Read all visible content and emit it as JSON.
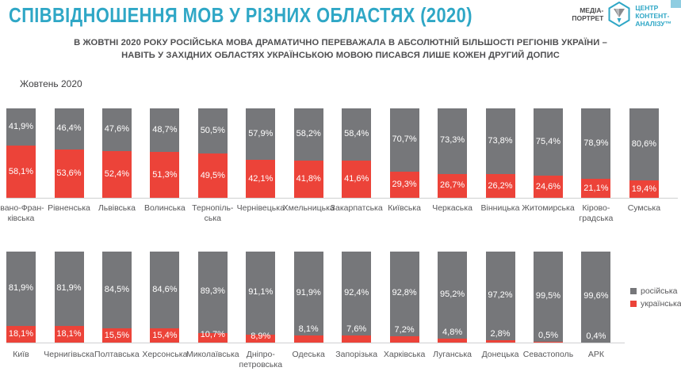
{
  "header": {
    "title": "СПІВВІДНОШЕННЯ МОВ У РІЗНИХ ОБЛАСТЯХ (2020)",
    "brand": {
      "media_portrait": "МЕДІА-\nПОРТРЕТ",
      "center": "ЦЕНТР\nКОНТЕНТ-\nАНАЛІЗУ™"
    }
  },
  "subtitle": {
    "line1": "В ЖОВТНІ 2020 РОКУ РОСІЙСЬКА МОВА ДРАМАТИЧНО ПЕРЕВАЖАЛА В АБСОЛЮТНІЙ БІЛЬШОСТІ РЕГІОНІВ УКРАЇНИ –",
    "line2": "НАВІТЬ У ЗАХІДНИХ ОБЛАСТЯХ УКРАЇНСЬКОЮ МОВОЮ ПИСАВСЯ ЛИШЕ КОЖЕН ДРУГИЙ ДОПИС"
  },
  "period_label": "Жовтень 2020",
  "colors": {
    "russian_gray": "#76777a",
    "ukrainian_red": "#ec4339",
    "accent_teal": "#2fa7c6",
    "label_dark": "#58585a"
  },
  "legend": {
    "position": "right-of-bottom-row",
    "items": [
      {
        "label": "російська",
        "color_key": "russian_gray"
      },
      {
        "label": "українська",
        "color_key": "ukrainian_red"
      }
    ]
  },
  "chart_data": {
    "type": "bar",
    "subtype": "100-percent-stacked-columns",
    "unit": "%",
    "title": "СПІВВІДНОШЕННЯ МОВ У РІЗНИХ ОБЛАСТЯХ (2020)",
    "period": "Жовтень 2020",
    "series_names": [
      "російська",
      "українська"
    ],
    "value_format": "comma-decimal-percent",
    "grid": false,
    "rows": [
      {
        "name": "top-row",
        "items": [
          {
            "region": "Івано-Фран-\nківська",
            "russian": 41.9,
            "ukrainian": 58.1
          },
          {
            "region": "Рівненська",
            "russian": 46.4,
            "ukrainian": 53.6
          },
          {
            "region": "Львівська",
            "russian": 47.6,
            "ukrainian": 52.4
          },
          {
            "region": "Волинська",
            "russian": 48.7,
            "ukrainian": 51.3
          },
          {
            "region": "Тернопіль-\nська",
            "russian": 50.5,
            "ukrainian": 49.5
          },
          {
            "region": "Чернівецька",
            "russian": 57.9,
            "ukrainian": 42.1
          },
          {
            "region": "Хмельницька",
            "russian": 58.2,
            "ukrainian": 41.8
          },
          {
            "region": "Закарпатська",
            "russian": 58.4,
            "ukrainian": 41.6
          },
          {
            "region": "Київська",
            "russian": 70.7,
            "ukrainian": 29.3
          },
          {
            "region": "Черкаська",
            "russian": 73.3,
            "ukrainian": 26.7
          },
          {
            "region": "Вінницька",
            "russian": 73.8,
            "ukrainian": 26.2
          },
          {
            "region": "Житомирська",
            "russian": 75.4,
            "ukrainian": 24.6
          },
          {
            "region": "Кірово-\nградська",
            "russian": 78.9,
            "ukrainian": 21.1
          },
          {
            "region": "Сумська",
            "russian": 80.6,
            "ukrainian": 19.4
          }
        ]
      },
      {
        "name": "bottom-row",
        "items": [
          {
            "region": "Київ",
            "russian": 81.9,
            "ukrainian": 18.1
          },
          {
            "region": "Чернигівьска",
            "russian": 81.9,
            "ukrainian": 18.1
          },
          {
            "region": "Полтавська",
            "russian": 84.5,
            "ukrainian": 15.5
          },
          {
            "region": "Херсонська",
            "russian": 84.6,
            "ukrainian": 15.4
          },
          {
            "region": "Миколаївська",
            "russian": 89.3,
            "ukrainian": 10.7
          },
          {
            "region": "Дніпро-\nпетровська",
            "russian": 91.1,
            "ukrainian": 8.9
          },
          {
            "region": "Одеська",
            "russian": 91.9,
            "ukrainian": 8.1
          },
          {
            "region": "Запорізька",
            "russian": 92.4,
            "ukrainian": 7.6
          },
          {
            "region": "Харківська",
            "russian": 92.8,
            "ukrainian": 7.2
          },
          {
            "region": "Луганська",
            "russian": 95.2,
            "ukrainian": 4.8
          },
          {
            "region": "Донецька",
            "russian": 97.2,
            "ukrainian": 2.8
          },
          {
            "region": "Севастополь",
            "russian": 99.5,
            "ukrainian": 0.5
          },
          {
            "region": "АРК",
            "russian": 99.6,
            "ukrainian": 0.4
          }
        ]
      }
    ]
  }
}
